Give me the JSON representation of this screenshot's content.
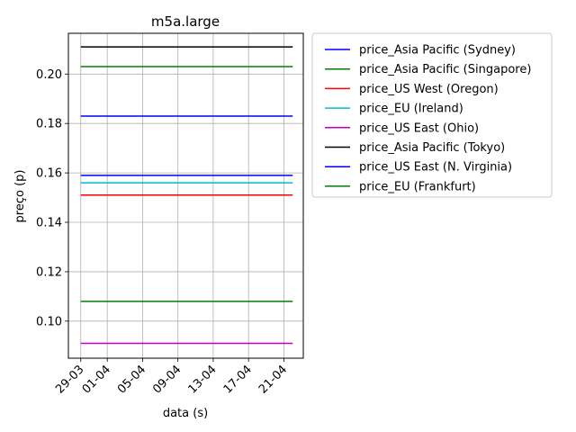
{
  "chart_data": {
    "type": "line",
    "title": "m5a.large",
    "xlabel": "data (s)",
    "ylabel": "preço (p)",
    "x_ticks": [
      "29-03",
      "01-04",
      "05-04",
      "09-04",
      "13-04",
      "17-04",
      "21-04"
    ],
    "x_tick_days": [
      0,
      3,
      7,
      11,
      15,
      19,
      23
    ],
    "x_range_days": [
      -1.4,
      25.2
    ],
    "series_x_days": [
      0,
      24
    ],
    "ylim": [
      0.085,
      0.2165
    ],
    "y_ticks": [
      0.1,
      0.12,
      0.14,
      0.16,
      0.18,
      0.2
    ],
    "y_tick_labels": [
      "0.10",
      "0.12",
      "0.14",
      "0.16",
      "0.18",
      "0.20"
    ],
    "grid": true,
    "legend_position": "outside-right",
    "series": [
      {
        "name": "price_Asia Pacific (Sydney)",
        "color": "#0000ff",
        "values": [
          0.183,
          0.183
        ]
      },
      {
        "name": "price_Asia Pacific (Singapore)",
        "color": "#008000",
        "values": [
          0.108,
          0.108
        ]
      },
      {
        "name": "price_US West (Oregon)",
        "color": "#ff0000",
        "values": [
          0.151,
          0.151
        ]
      },
      {
        "name": "price_EU (Ireland)",
        "color": "#00bfbf",
        "values": [
          0.156,
          0.156
        ]
      },
      {
        "name": "price_US East (Ohio)",
        "color": "#bf00bf",
        "values": [
          0.091,
          0.091
        ]
      },
      {
        "name": "price_Asia Pacific (Tokyo)",
        "color": "#000000",
        "values": [
          0.211,
          0.211
        ]
      },
      {
        "name": "price_US East (N. Virginia)",
        "color": "#0000ff",
        "values": [
          0.159,
          0.159
        ]
      },
      {
        "name": "price_EU (Frankfurt)",
        "color": "#008000",
        "values": [
          0.203,
          0.203
        ]
      }
    ]
  }
}
